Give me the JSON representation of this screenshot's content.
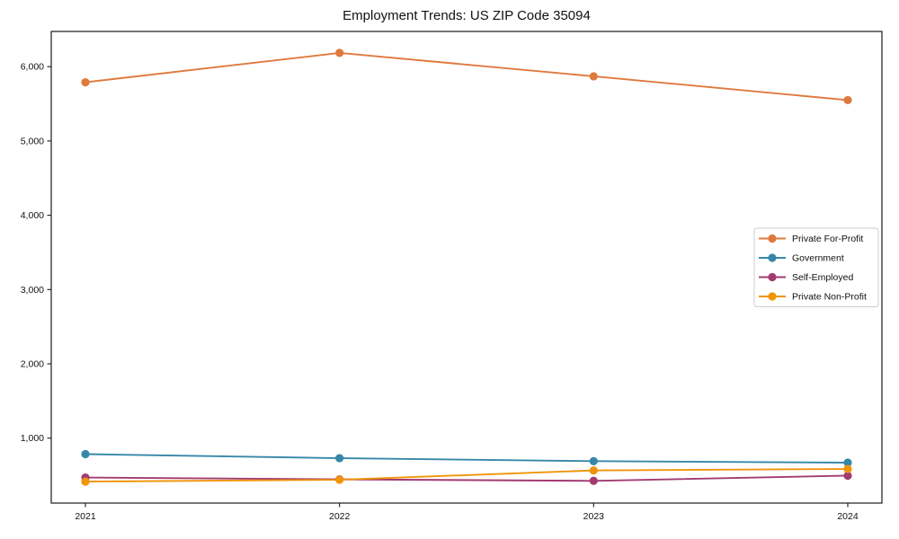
{
  "figure": {
    "title": "Employment Trends: US ZIP Code 35094"
  },
  "chart_data": {
    "type": "line",
    "title": "Employment Trends: US ZIP Code 35094",
    "categories": [
      "2021",
      "2022",
      "2023",
      "2024"
    ],
    "series": [
      {
        "name": "Private For-Profit",
        "color": "#E0793E",
        "values": [
          5790,
          6185,
          5870,
          5550
        ]
      },
      {
        "name": "Government",
        "color": "#3787A8",
        "values": [
          785,
          730,
          690,
          670
        ]
      },
      {
        "name": "Self-Employed",
        "color": "#A23B72",
        "values": [
          470,
          445,
          425,
          495
        ]
      },
      {
        "name": "Private Non-Profit",
        "color": "#F0940A",
        "values": [
          415,
          440,
          565,
          585
        ]
      }
    ],
    "xlabel": "",
    "ylabel": "",
    "ylim": [
      126,
      6474
    ],
    "yticks": [
      1000,
      2000,
      3000,
      4000,
      5000,
      6000
    ],
    "ytick_labels": [
      "1,000",
      "2,000",
      "3,000",
      "4,000",
      "5,000",
      "6,000"
    ],
    "xtick_labels": [
      "2021",
      "2022",
      "2023",
      "2024"
    ],
    "grid": false,
    "legend_position": "center right",
    "marker": "circle",
    "axis_color": "#1a1a1a",
    "tick_label_color": "#111111",
    "background": "#ffffff"
  }
}
